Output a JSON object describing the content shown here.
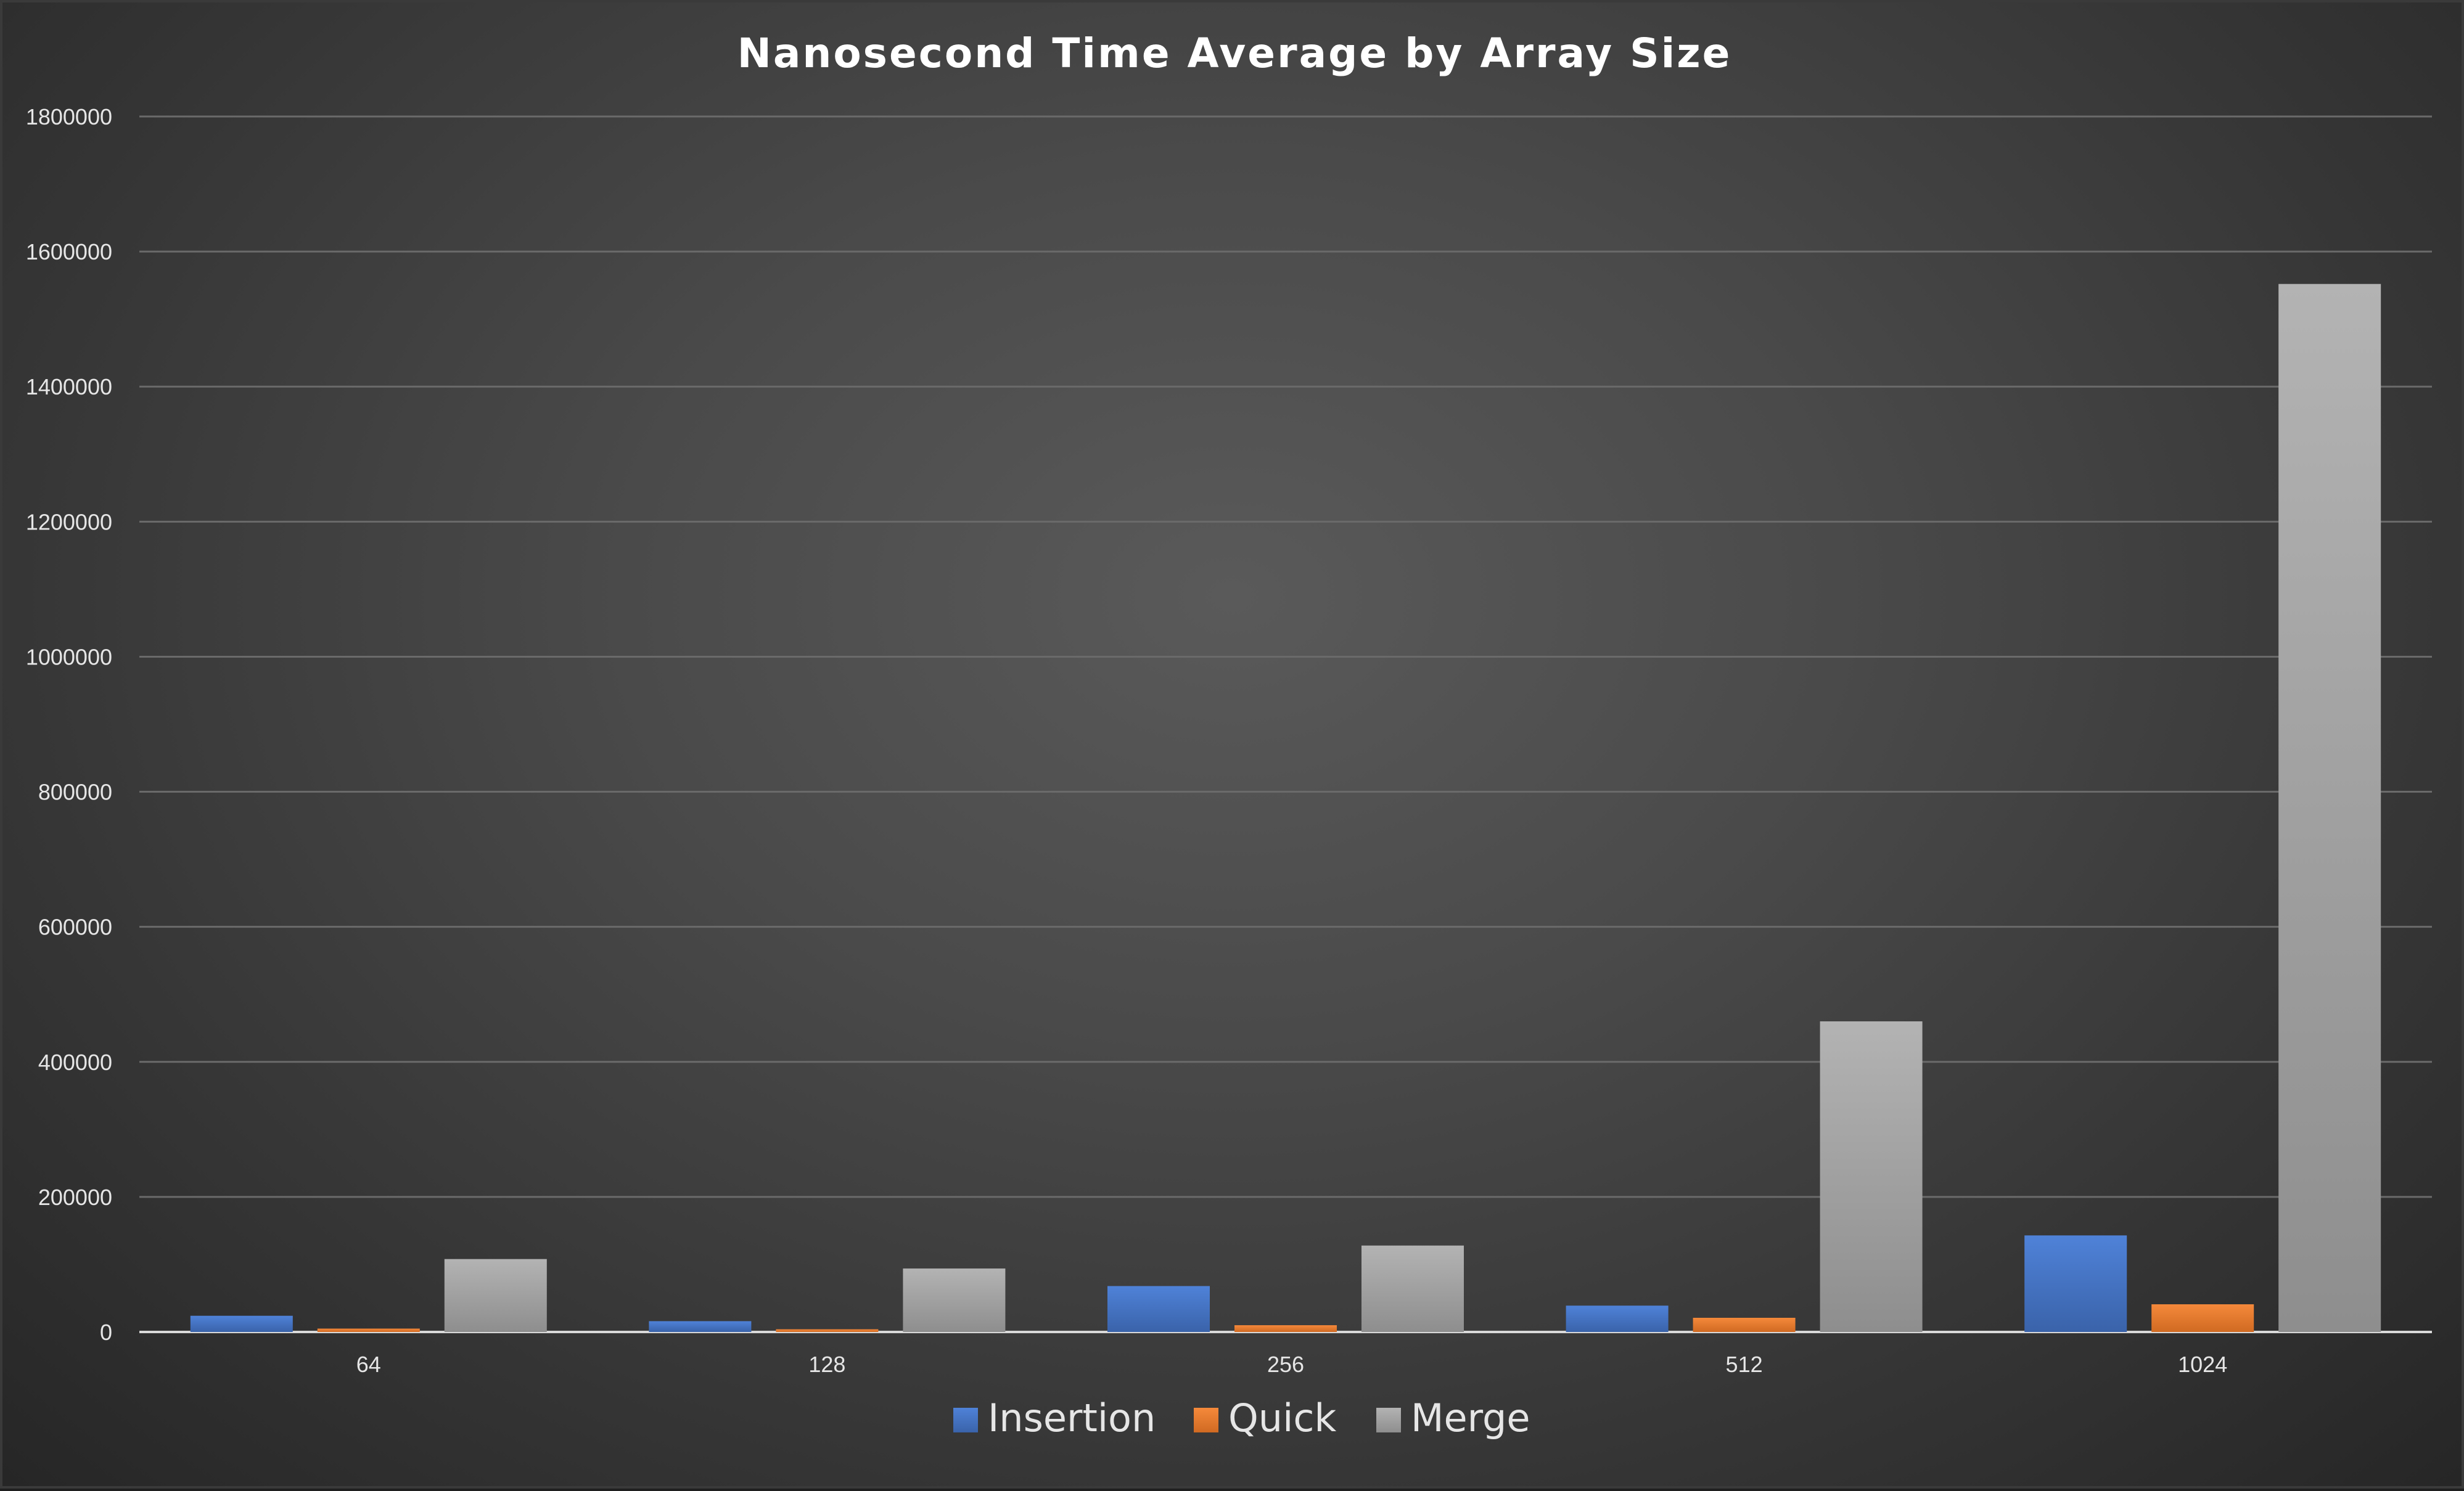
{
  "chart_data": {
    "type": "bar",
    "title": "Nanosecond Time Average by Array Size",
    "xlabel": "",
    "ylabel": "",
    "categories": [
      "64",
      "128",
      "256",
      "512",
      "1024"
    ],
    "series": [
      {
        "name": "Insertion",
        "color": "#4472c4",
        "values": [
          24000,
          16000,
          68000,
          39000,
          143000
        ]
      },
      {
        "name": "Quick",
        "color": "#ed7d31",
        "values": [
          5000,
          4000,
          10000,
          21000,
          41000
        ]
      },
      {
        "name": "Merge",
        "color": "#a5a5a5",
        "values": [
          108000,
          94000,
          128000,
          460000,
          1552000
        ]
      }
    ],
    "ylim": [
      0,
      1800000
    ],
    "yticks": [
      "0",
      "200000",
      "400000",
      "600000",
      "800000",
      "1000000",
      "1200000",
      "1400000",
      "1600000",
      "1800000"
    ],
    "grid": true,
    "legend_position": "bottom"
  }
}
